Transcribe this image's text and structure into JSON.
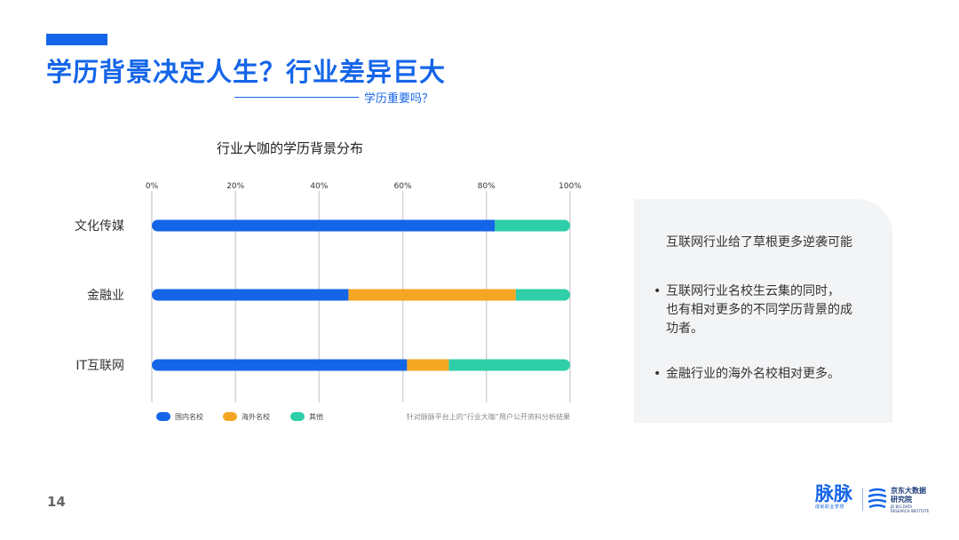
{
  "header": {
    "title": "学历背景决定人生？行业差异巨大",
    "subtitle": "学历重要吗？"
  },
  "chart_data": {
    "type": "bar",
    "orientation": "horizontal",
    "stacked": true,
    "title": "行业大咖的学历背景分布",
    "categories": [
      "文化传媒",
      "金融业",
      "IT互联网"
    ],
    "x_ticks": [
      "0%",
      "20%",
      "40%",
      "60%",
      "80%",
      "100%"
    ],
    "xlim": [
      0,
      100
    ],
    "grid": true,
    "series": [
      {
        "name": "国内名校",
        "color": "#1565e8",
        "values": [
          82,
          47,
          61
        ]
      },
      {
        "name": "海外名校",
        "color": "#f5a623",
        "values": [
          0,
          40,
          10
        ]
      },
      {
        "name": "其他",
        "color": "#2ecfa8",
        "values": [
          18,
          13,
          29
        ]
      }
    ],
    "legend_position": "bottom-left",
    "note": "针对脉脉平台上的“行业大咖”用户公开资料分析结果"
  },
  "panel": {
    "heading": "互联网行业给了草根更多逆袭可能",
    "bullets": [
      {
        "lines": [
          "互联网行业名校生云集的同时，",
          "也有相对更多的不同学历背景的成",
          "功者。"
        ]
      },
      {
        "lines": [
          "金融行业的海外名校相对更多。"
        ]
      }
    ],
    "bullet_symbol": "•"
  },
  "footer": {
    "page_number": "14",
    "logo_maimai": "脉脉",
    "logo_maimai_tagline": "成就职业梦想",
    "logo_jd_line1": "京东大数据",
    "logo_jd_line2": "研究院",
    "logo_jd_line3": "JD BIG DATA",
    "logo_jd_line4": "RESEARCH INSTITUTE"
  },
  "colors": {
    "brand": "#1565e8",
    "domestic": "#1565e8",
    "overseas": "#f5a623",
    "other": "#2ecfa8",
    "panel_bg": "#f3f4f6"
  }
}
